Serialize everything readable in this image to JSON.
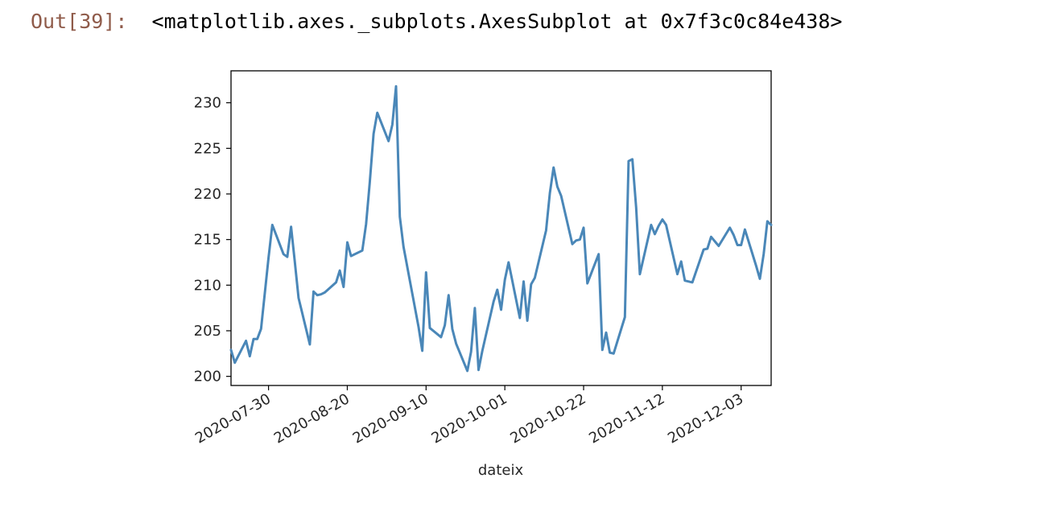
{
  "cell": {
    "prompt": "Out[39]:",
    "repr": "<matplotlib.axes._subplots.AxesSubplot at 0x7f3c0c84e438>"
  },
  "chart_data": {
    "type": "line",
    "title": "",
    "xlabel": "dateix",
    "ylabel": "",
    "ylim": [
      199,
      233.5
    ],
    "xlim": [
      "2020-07-20",
      "2020-12-11"
    ],
    "yticks": [
      200,
      205,
      210,
      215,
      220,
      225,
      230
    ],
    "xticks": [
      "2020-07-30",
      "2020-08-20",
      "2020-09-10",
      "2020-10-01",
      "2020-10-22",
      "2020-11-12",
      "2020-12-03"
    ],
    "grid": false,
    "line_color": "#4a87b8",
    "series": [
      {
        "x": [
          "2020-07-20",
          "2020-07-21",
          "2020-07-24",
          "2020-07-25",
          "2020-07-26",
          "2020-07-27",
          "2020-07-28",
          "2020-07-30",
          "2020-07-31",
          "2020-08-03",
          "2020-08-04",
          "2020-08-05",
          "2020-08-06",
          "2020-08-07",
          "2020-08-10",
          "2020-08-11",
          "2020-08-12",
          "2020-08-13",
          "2020-08-14",
          "2020-08-17",
          "2020-08-18",
          "2020-08-19",
          "2020-08-20",
          "2020-08-21",
          "2020-08-24",
          "2020-08-25",
          "2020-08-26",
          "2020-08-27",
          "2020-08-28",
          "2020-08-31",
          "2020-09-01",
          "2020-09-02",
          "2020-09-03",
          "2020-09-04",
          "2020-09-08",
          "2020-09-09",
          "2020-09-10",
          "2020-09-11",
          "2020-09-14",
          "2020-09-15",
          "2020-09-16",
          "2020-09-17",
          "2020-09-18",
          "2020-09-21",
          "2020-09-22",
          "2020-09-23",
          "2020-09-24",
          "2020-09-25",
          "2020-09-28",
          "2020-09-29",
          "2020-09-30",
          "2020-10-01",
          "2020-10-02",
          "2020-10-05",
          "2020-10-06",
          "2020-10-07",
          "2020-10-08",
          "2020-10-09",
          "2020-10-12",
          "2020-10-13",
          "2020-10-14",
          "2020-10-15",
          "2020-10-16",
          "2020-10-19",
          "2020-10-20",
          "2020-10-21",
          "2020-10-22",
          "2020-10-23",
          "2020-10-26",
          "2020-10-27",
          "2020-10-28",
          "2020-10-29",
          "2020-10-30",
          "2020-11-02",
          "2020-11-03",
          "2020-11-04",
          "2020-11-05",
          "2020-11-06",
          "2020-11-09",
          "2020-11-10",
          "2020-11-11",
          "2020-11-12",
          "2020-11-13",
          "2020-11-16",
          "2020-11-17",
          "2020-11-18",
          "2020-11-19",
          "2020-11-20",
          "2020-11-23",
          "2020-11-24",
          "2020-11-25",
          "2020-11-27",
          "2020-11-30",
          "2020-12-01",
          "2020-12-02",
          "2020-12-03",
          "2020-12-04",
          "2020-12-07",
          "2020-12-08",
          "2020-12-09",
          "2020-12-10",
          "2020-12-11"
        ],
        "y": [
          202.9,
          201.5,
          203.9,
          202.2,
          204.1,
          204.1,
          205.2,
          213.0,
          216.6,
          213.4,
          213.1,
          216.4,
          212.6,
          208.6,
          203.5,
          209.3,
          208.9,
          209.0,
          209.2,
          210.3,
          211.6,
          209.8,
          214.7,
          213.2,
          213.8,
          216.7,
          221.3,
          226.6,
          228.9,
          225.8,
          227.6,
          231.8,
          217.5,
          214.2,
          205.4,
          202.8,
          211.4,
          205.3,
          204.3,
          205.6,
          208.9,
          205.2,
          203.6,
          200.6,
          202.7,
          207.5,
          200.7,
          202.8,
          208.2,
          209.5,
          207.3,
          210.6,
          212.5,
          206.4,
          210.4,
          206.1,
          210.1,
          210.8,
          216.0,
          220.1,
          222.9,
          220.8,
          219.8,
          214.5,
          214.9,
          215.0,
          216.3,
          210.2,
          213.4,
          202.9,
          204.8,
          202.6,
          202.5,
          206.5,
          223.6,
          223.8,
          218.5,
          211.2,
          216.6,
          215.6,
          216.5,
          217.2,
          216.6,
          211.2,
          212.6,
          210.5,
          210.4,
          210.3,
          213.9,
          214.0,
          215.3,
          214.3,
          216.3,
          215.5,
          214.4,
          214.4,
          216.1,
          212.1,
          210.7,
          213.4,
          217.0,
          216.6
        ]
      }
    ]
  }
}
